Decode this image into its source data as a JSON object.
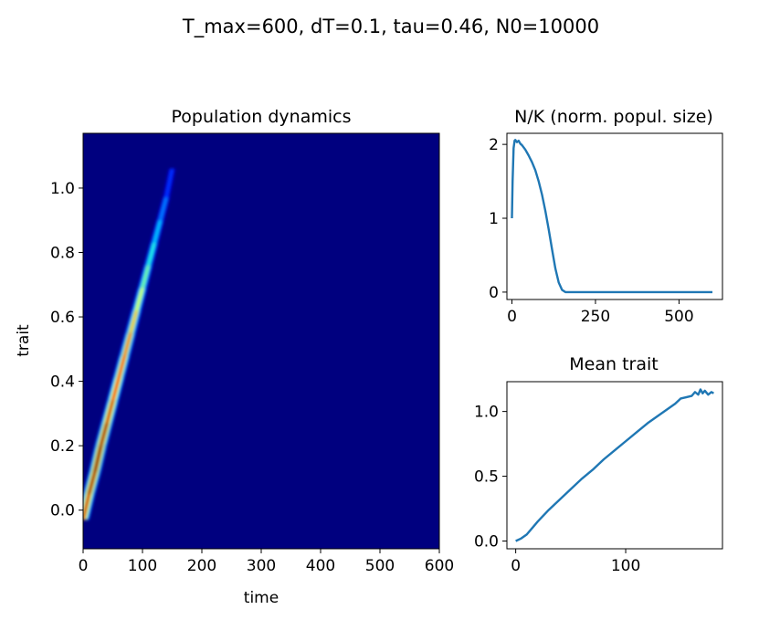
{
  "figure": {
    "suptitle": "T_max=600, dT=0.1, tau=0.46, N0=10000"
  },
  "chart_data": [
    {
      "type": "heatmap",
      "title": "Population dynamics",
      "xlabel": "time",
      "ylabel": "trait",
      "xlim": [
        0,
        600
      ],
      "ylim": [
        -0.12,
        1.17
      ],
      "xticks": [
        0,
        100,
        200,
        300,
        400,
        500,
        600
      ],
      "xtick_labels": [
        "0",
        "100",
        "200",
        "300",
        "400",
        "500",
        "600"
      ],
      "yticks": [
        0.0,
        0.2,
        0.4,
        0.6,
        0.8,
        1.0
      ],
      "ytick_labels": [
        "0.0",
        "0.2",
        "0.4",
        "0.6",
        "0.8",
        "1.0"
      ],
      "colormap": "jet",
      "background_color": "#00007f",
      "ridge": {
        "t": [
          0,
          10,
          20,
          30,
          40,
          50,
          60,
          70,
          80,
          90,
          100,
          110,
          120,
          130,
          140,
          150
        ],
        "trait": [
          -0.03,
          0.05,
          0.12,
          0.2,
          0.27,
          0.34,
          0.41,
          0.48,
          0.55,
          0.62,
          0.69,
          0.76,
          0.83,
          0.9,
          0.97,
          1.06
        ],
        "intensity": [
          0.9,
          0.95,
          1.0,
          1.0,
          0.95,
          0.9,
          0.85,
          0.8,
          0.72,
          0.62,
          0.52,
          0.42,
          0.34,
          0.26,
          0.18,
          0.1
        ]
      }
    },
    {
      "type": "line",
      "title": "N/K (norm. popul. size)",
      "xlim": [
        -15,
        630
      ],
      "ylim": [
        -0.1,
        2.15
      ],
      "xticks": [
        0,
        250,
        500
      ],
      "xtick_labels": [
        "0",
        "250",
        "500"
      ],
      "yticks": [
        0,
        1,
        2
      ],
      "ytick_labels": [
        "0",
        "1",
        "2"
      ],
      "color": "#1f77b4",
      "series": [
        {
          "x": [
            0,
            2,
            5,
            8,
            10,
            15,
            20,
            25,
            30,
            40,
            50,
            60,
            70,
            80,
            90,
            100,
            110,
            120,
            130,
            140,
            150,
            160,
            170,
            200,
            300,
            400,
            500,
            600
          ],
          "y": [
            1.0,
            1.5,
            1.95,
            2.05,
            2.06,
            2.03,
            2.05,
            2.01,
            1.99,
            1.93,
            1.85,
            1.76,
            1.65,
            1.5,
            1.32,
            1.1,
            0.85,
            0.58,
            0.32,
            0.13,
            0.03,
            0.0,
            0.0,
            0.0,
            0.0,
            0.0,
            0.0,
            0.0
          ]
        }
      ]
    },
    {
      "type": "line",
      "title": "Mean trait",
      "xlim": [
        -8,
        188
      ],
      "ylim": [
        -0.06,
        1.23
      ],
      "xticks": [
        0,
        100
      ],
      "xtick_labels": [
        "0",
        "100"
      ],
      "yticks": [
        0.0,
        0.5,
        1.0
      ],
      "ytick_labels": [
        "0.0",
        "0.5",
        "1.0"
      ],
      "color": "#1f77b4",
      "series": [
        {
          "x": [
            0,
            5,
            10,
            15,
            20,
            30,
            40,
            50,
            60,
            70,
            80,
            90,
            100,
            110,
            120,
            130,
            140,
            145,
            150,
            155,
            160,
            163,
            166,
            168,
            170,
            172,
            175,
            178,
            180
          ],
          "y": [
            0.0,
            0.02,
            0.05,
            0.1,
            0.15,
            0.24,
            0.32,
            0.4,
            0.48,
            0.55,
            0.63,
            0.7,
            0.77,
            0.84,
            0.91,
            0.97,
            1.03,
            1.06,
            1.1,
            1.11,
            1.12,
            1.15,
            1.13,
            1.17,
            1.14,
            1.16,
            1.13,
            1.15,
            1.14
          ]
        }
      ]
    }
  ]
}
